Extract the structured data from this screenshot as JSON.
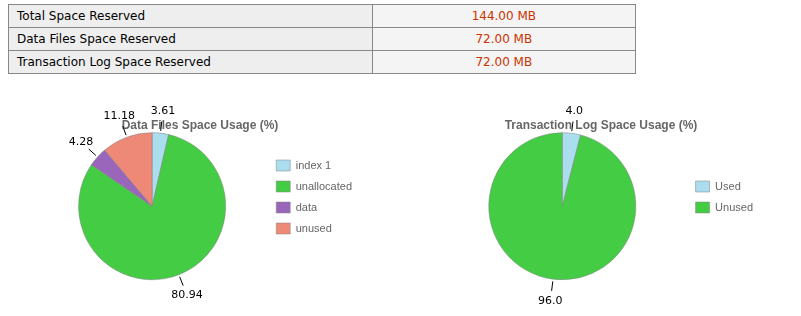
{
  "chart_data": [
    {
      "type": "table",
      "categories": [
        "Total Space Reserved",
        "Data Files Space Reserved",
        "Transaction Log Space Reserved"
      ],
      "values": [
        144.0,
        72.0,
        72.0
      ],
      "value_labels": [
        "144.00 MB",
        "72.00 MB",
        "72.00 MB"
      ],
      "color": "#cc3300"
    },
    {
      "type": "pie",
      "title": "Data Files Space Usage (%)",
      "categories": [
        "index 1",
        "unallocated",
        "data",
        "unused"
      ],
      "values": [
        3.61,
        80.94,
        4.28,
        11.18
      ],
      "colors": [
        "#aaddee",
        "#44cc44",
        "#9966bb",
        "#ee8877"
      ],
      "data_labels": true,
      "legend": "right"
    },
    {
      "type": "pie",
      "title": "Transaction Log Space Usage (%)",
      "categories": [
        "Used",
        "Unused"
      ],
      "values": [
        4.0,
        96.0
      ],
      "value_labels": [
        "4.0",
        "96.0"
      ],
      "colors": [
        "#aaddee",
        "#44cc44"
      ],
      "data_labels": true,
      "legend": "right"
    }
  ]
}
